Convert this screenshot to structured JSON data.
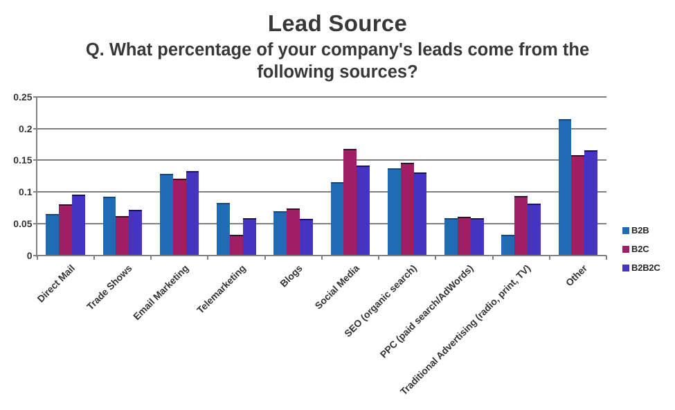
{
  "chart_data": {
    "type": "bar",
    "title": "Lead Source",
    "subtitle": "Q. What percentage of your company's leads come from the following sources?",
    "categories": [
      "Direct Mail",
      "Trade Shows",
      "Email Marketing",
      "Telemarketing",
      "Blogs",
      "Social Media",
      "SEO (organic search)",
      "PPC (paid search/AdWords)",
      "Traditional Advertising (radio, print, TV)",
      "Other"
    ],
    "series": [
      {
        "name": "B2B",
        "color": "#1F6CB5",
        "border": "#14477d",
        "values": [
          0.065,
          0.092,
          0.129,
          0.083,
          0.07,
          0.115,
          0.137,
          0.059,
          0.032,
          0.215
        ]
      },
      {
        "name": "B2C",
        "color": "#9E1F63",
        "border": "#3d0c26",
        "values": [
          0.08,
          0.062,
          0.121,
          0.032,
          0.074,
          0.168,
          0.146,
          0.061,
          0.093,
          0.158
        ]
      },
      {
        "name": "B2B2C",
        "color": "#4533C1",
        "border": "#190f73",
        "values": [
          0.096,
          0.072,
          0.133,
          0.059,
          0.057,
          0.142,
          0.131,
          0.058,
          0.081,
          0.166
        ]
      }
    ],
    "ylim": [
      0,
      0.25
    ],
    "y_ticks": [
      "0",
      "0.05",
      "0.1",
      "0.15",
      "0.2",
      "0.25"
    ],
    "grid": true,
    "legend_position": "right",
    "grid_color": "#808080"
  }
}
